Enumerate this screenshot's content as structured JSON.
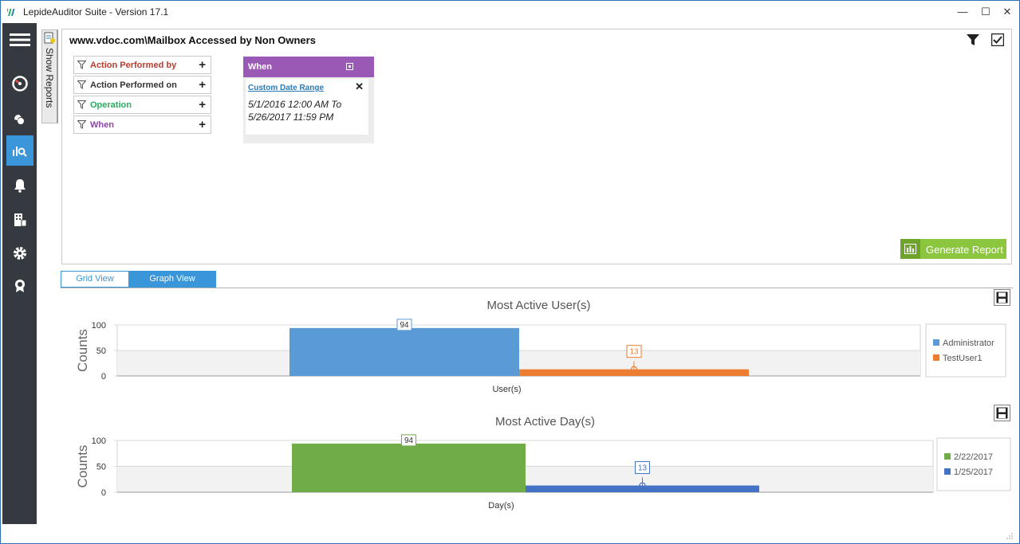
{
  "window": {
    "title": "LepideAuditor Suite - Version 17.1",
    "minimize": "—",
    "maximize": "☐",
    "close": "✕"
  },
  "sidebar": {
    "items": [
      {
        "icon": "hamburger-menu-icon"
      },
      {
        "icon": "dashboard-gauge-icon"
      },
      {
        "icon": "radar-icon"
      },
      {
        "icon": "reports-search-icon",
        "active": true
      },
      {
        "icon": "bell-alerts-icon"
      },
      {
        "icon": "building-report-icon"
      },
      {
        "icon": "gear-settings-icon"
      },
      {
        "icon": "license-badge-icon"
      }
    ]
  },
  "show_reports": {
    "label": "Show Reports"
  },
  "report": {
    "title": "www.vdoc.com\\Mailbox Accessed by Non Owners",
    "filters": [
      {
        "label": "Action Performed by",
        "color": "#c0392b"
      },
      {
        "label": "Action Performed on",
        "color": "#333333"
      },
      {
        "label": "Operation",
        "color": "#27ae60"
      },
      {
        "label": "When",
        "color": "#8e44ad"
      }
    ],
    "when": {
      "header": "When",
      "range_label": "Custom Date Range",
      "range_line1": "5/1/2016 12:00 AM To",
      "range_line2": "5/26/2017 11:59 PM"
    },
    "generate_label": "Generate Report"
  },
  "tabs": {
    "grid": "Grid View",
    "graph": "Graph View"
  },
  "chart_data": [
    {
      "type": "bar",
      "title": "Most Active User(s)",
      "xlabel": "User(s)",
      "ylabel": "Counts",
      "ylim": [
        0,
        100
      ],
      "yticks": [
        "0",
        "50",
        "100"
      ],
      "series": [
        {
          "name": "Administrator",
          "value": 94,
          "color": "#5b9bd5"
        },
        {
          "name": "TestUser1",
          "value": 13,
          "color": "#ed7d31"
        }
      ],
      "legend": "right",
      "grid": true
    },
    {
      "type": "bar",
      "title": "Most Active Day(s)",
      "xlabel": "Day(s)",
      "ylabel": "Counts",
      "ylim": [
        0,
        100
      ],
      "yticks": [
        "0",
        "50",
        "100"
      ],
      "series": [
        {
          "name": "2/22/2017",
          "value": 94,
          "color": "#70ad47"
        },
        {
          "name": "1/25/2017",
          "value": 13,
          "color": "#4472c4"
        }
      ],
      "legend": "right",
      "grid": true
    }
  ]
}
